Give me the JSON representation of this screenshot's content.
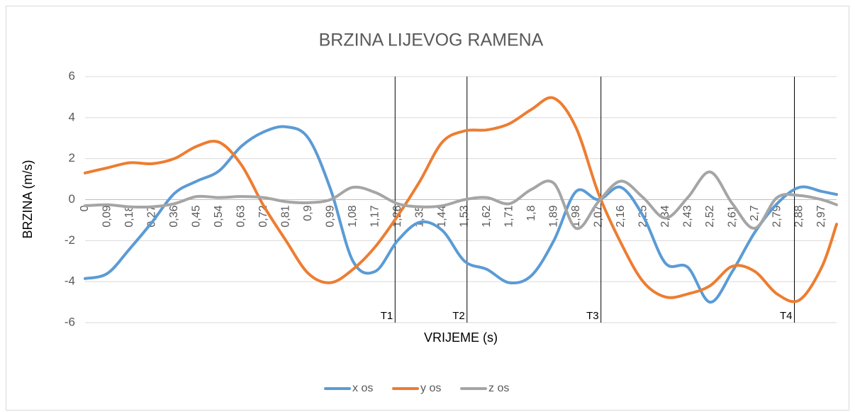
{
  "chart_data": {
    "type": "line",
    "title": "BRZINA LIJEVOG RAMENA",
    "x_label": "VRIJEME (s)",
    "y_label": "BRZINA (m/s)",
    "x": [
      0,
      0.09,
      0.18,
      0.27,
      0.36,
      0.45,
      0.54,
      0.63,
      0.72,
      0.81,
      0.9,
      0.99,
      1.08,
      1.17,
      1.26,
      1.35,
      1.44,
      1.53,
      1.62,
      1.71,
      1.8,
      1.89,
      1.98,
      2.07,
      2.16,
      2.25,
      2.34,
      2.43,
      2.52,
      2.61,
      2.7,
      2.79,
      2.88,
      2.97,
      3.03
    ],
    "series": [
      {
        "name": "x os",
        "color": "#5b9bd5",
        "values": [
          -3.85,
          -3.6,
          -2.4,
          -1.1,
          0.3,
          0.9,
          1.4,
          2.6,
          3.3,
          3.55,
          3.0,
          0.5,
          -3.0,
          -3.5,
          -2.0,
          -1.1,
          -1.5,
          -3.0,
          -3.4,
          -4.05,
          -3.7,
          -2.0,
          0.4,
          0.0,
          0.6,
          -0.8,
          -3.1,
          -3.3,
          -5.0,
          -3.5,
          -1.6,
          -0.2,
          0.6,
          0.4,
          0.25
        ]
      },
      {
        "name": "y os",
        "color": "#ed7d31",
        "values": [
          1.3,
          1.55,
          1.8,
          1.75,
          2.0,
          2.6,
          2.8,
          1.7,
          -0.3,
          -2.0,
          -3.6,
          -4.05,
          -3.4,
          -2.3,
          -0.8,
          0.9,
          2.8,
          3.35,
          3.4,
          3.7,
          4.4,
          4.95,
          3.5,
          0.3,
          -2.1,
          -4.0,
          -4.75,
          -4.6,
          -4.2,
          -3.25,
          -3.5,
          -4.6,
          -4.9,
          -3.3,
          -1.2
        ]
      },
      {
        "name": "z os",
        "color": "#a5a5a5",
        "values": [
          -0.3,
          -0.25,
          -0.35,
          -0.35,
          -0.2,
          0.15,
          0.1,
          0.15,
          0.1,
          -0.1,
          -0.15,
          0.0,
          0.6,
          0.35,
          -0.2,
          -0.35,
          -0.3,
          0.0,
          0.1,
          -0.2,
          0.5,
          0.8,
          -1.4,
          -0.1,
          0.9,
          0.1,
          -0.9,
          0.1,
          1.35,
          -0.2,
          -1.4,
          0.1,
          0.2,
          0.0,
          -0.25
        ]
      }
    ],
    "xlim": [
      0,
      3.03
    ],
    "xticks": [
      0,
      {
        "value": 0.09,
        "label": "0,09"
      },
      {
        "value": 0.18,
        "label": "0,18"
      },
      {
        "value": 0.27,
        "label": "0,27"
      },
      {
        "value": 0.36,
        "label": "0,36"
      },
      {
        "value": 0.45,
        "label": "0,45"
      },
      {
        "value": 0.54,
        "label": "0,54"
      },
      {
        "value": 0.63,
        "label": "0,63"
      },
      {
        "value": 0.72,
        "label": "0,72"
      },
      {
        "value": 0.81,
        "label": "0,81"
      },
      {
        "value": 0.9,
        "label": "0,9"
      },
      {
        "value": 0.99,
        "label": "0,99"
      },
      {
        "value": 1.08,
        "label": "1,08"
      },
      {
        "value": 1.17,
        "label": "1,17"
      },
      {
        "value": 1.26,
        "label": "1,26"
      },
      {
        "value": 1.35,
        "label": "1,35"
      },
      {
        "value": 1.44,
        "label": "1,44"
      },
      {
        "value": 1.53,
        "label": "1,53"
      },
      {
        "value": 1.62,
        "label": "1,62"
      },
      {
        "value": 1.71,
        "label": "1,71"
      },
      {
        "value": 1.8,
        "label": "1,8"
      },
      {
        "value": 1.89,
        "label": "1,89"
      },
      {
        "value": 1.98,
        "label": "1,98"
      },
      {
        "value": 2.07,
        "label": "2,07"
      },
      {
        "value": 2.16,
        "label": "2,16"
      },
      {
        "value": 2.25,
        "label": "2,25"
      },
      {
        "value": 2.34,
        "label": "2,34"
      },
      {
        "value": 2.43,
        "label": "2,43"
      },
      {
        "value": 2.52,
        "label": "2,52"
      },
      {
        "value": 2.61,
        "label": "2,61"
      },
      {
        "value": 2.7,
        "label": "2,7"
      },
      {
        "value": 2.79,
        "label": "2,79"
      },
      {
        "value": 2.88,
        "label": "2,88"
      },
      {
        "value": 2.97,
        "label": "2,97"
      }
    ],
    "ylim": [
      -6,
      6
    ],
    "yticks": [
      -6,
      -4,
      -2,
      0,
      2,
      4,
      6
    ],
    "grid": true,
    "legend": "bottom",
    "annotations": [
      {
        "label": "T1",
        "x": 1.25
      },
      {
        "label": "T2",
        "x": 1.54
      },
      {
        "label": "T3",
        "x": 2.08
      },
      {
        "label": "T4",
        "x": 2.86
      }
    ]
  }
}
